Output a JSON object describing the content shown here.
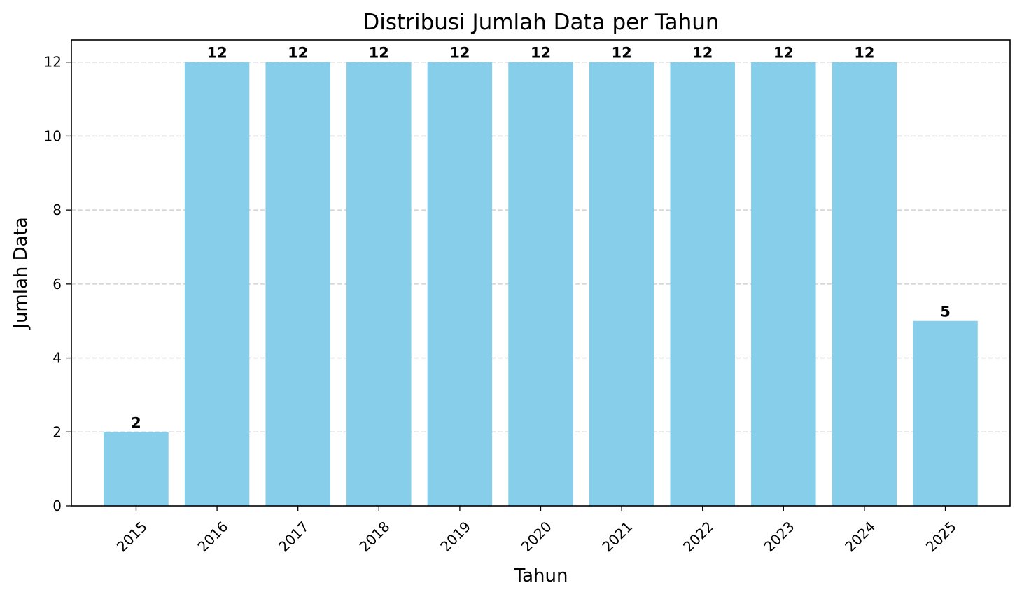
{
  "chart_data": {
    "type": "bar",
    "title": "Distribusi Jumlah Data per Tahun",
    "xlabel": "Tahun",
    "ylabel": "Jumlah Data",
    "categories": [
      "2015",
      "2016",
      "2017",
      "2018",
      "2019",
      "2020",
      "2021",
      "2022",
      "2023",
      "2024",
      "2025"
    ],
    "values": [
      2,
      12,
      12,
      12,
      12,
      12,
      12,
      12,
      12,
      12,
      5
    ],
    "data_labels": [
      "2",
      "12",
      "12",
      "12",
      "12",
      "12",
      "12",
      "12",
      "12",
      "12",
      "5"
    ],
    "yticks": [
      "0",
      "2",
      "4",
      "6",
      "8",
      "10",
      "12"
    ],
    "ytick_values": [
      0,
      2,
      4,
      6,
      8,
      10,
      12
    ],
    "ylim": [
      0,
      12.6
    ],
    "grid": "y-dashed",
    "xtick_rotation_deg": 45,
    "bar_color": "#87CEEB"
  }
}
